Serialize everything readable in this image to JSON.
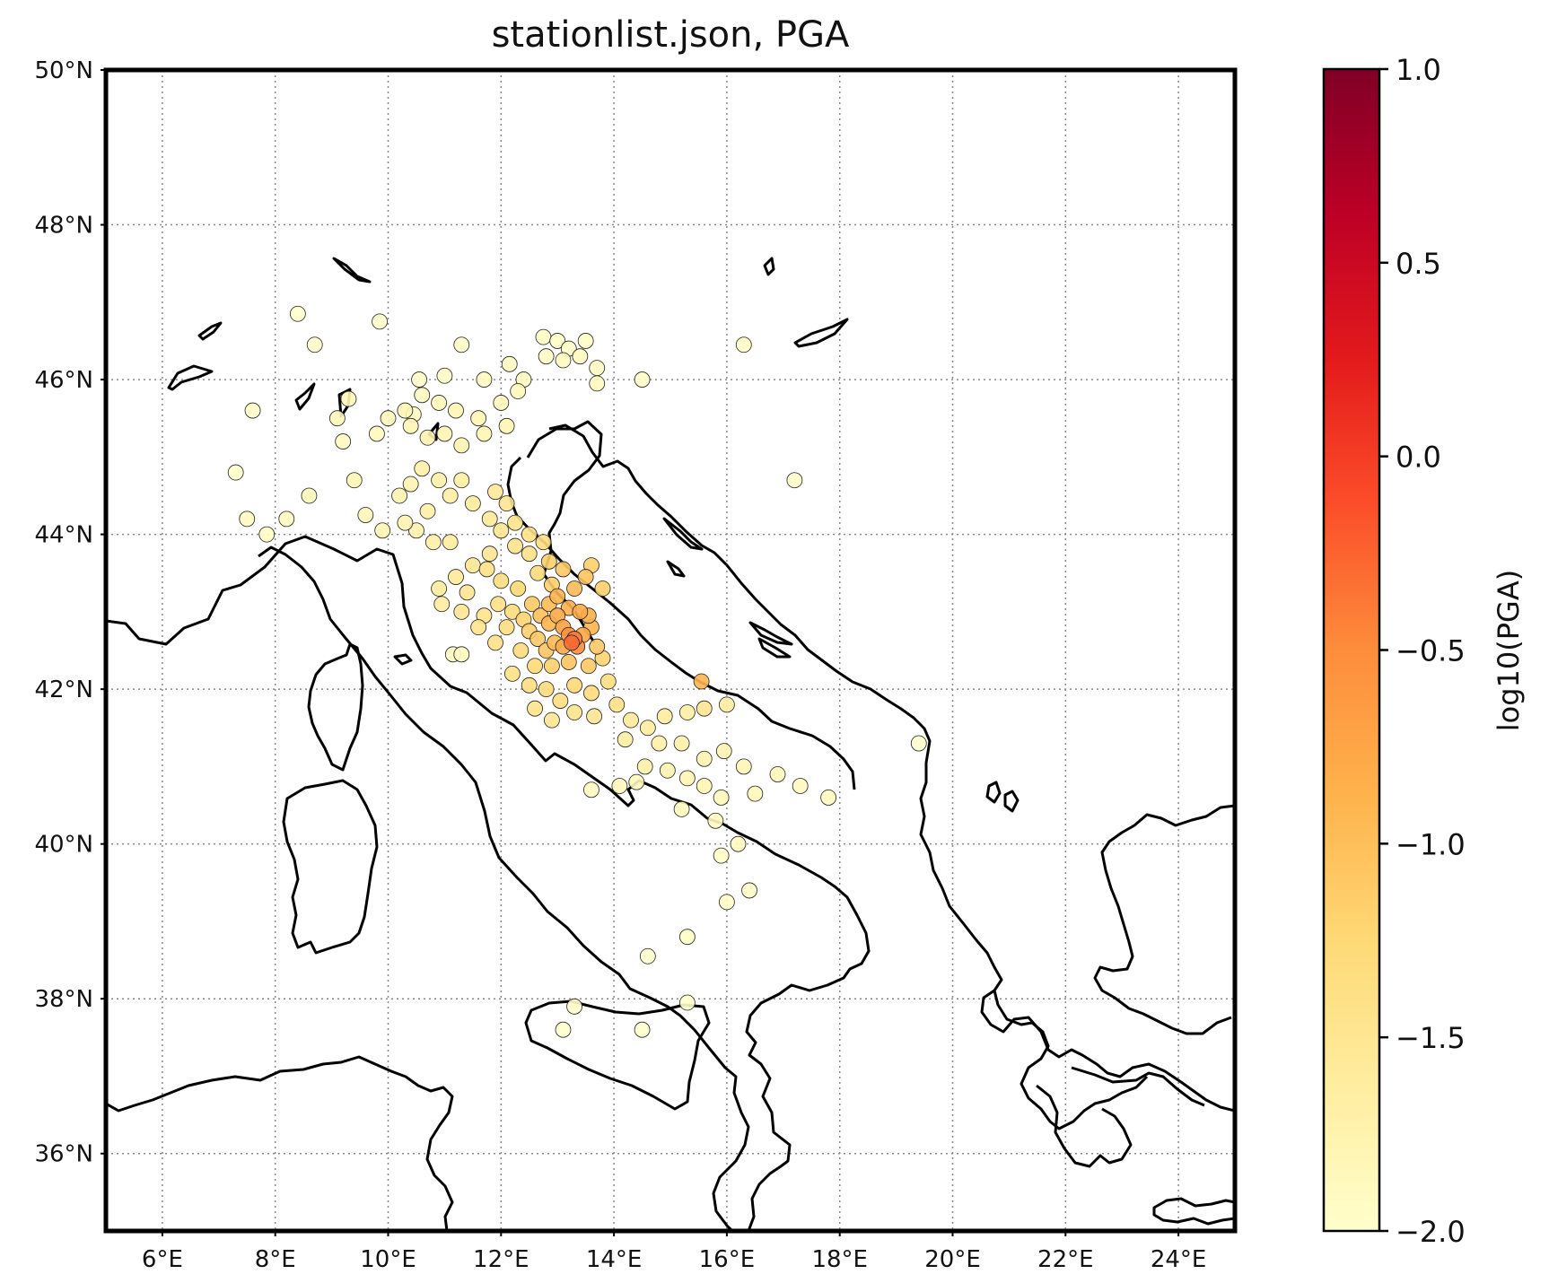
{
  "title": "stationlist.json, PGA",
  "colorbar": {
    "label": "log10(PGA)",
    "range": [
      -2.0,
      1.0
    ],
    "ticks": [
      "1.0",
      "0.5",
      "0.0",
      "−0.5",
      "−1.0",
      "−1.5",
      "−2.0"
    ],
    "tick_values": [
      1.0,
      0.5,
      0.0,
      -0.5,
      -1.0,
      -1.5,
      -2.0
    ],
    "colormap": "YlOrRd",
    "stops": [
      "#ffffcc",
      "#ffeda0",
      "#fed976",
      "#feb24c",
      "#fd8d3c",
      "#fc4e2a",
      "#e31a1c",
      "#bd0026",
      "#800026"
    ]
  },
  "map": {
    "lon_range": [
      5,
      25
    ],
    "lat_range": [
      35,
      50
    ],
    "lon_ticks": [
      "6°E",
      "8°E",
      "10°E",
      "12°E",
      "14°E",
      "16°E",
      "18°E",
      "20°E",
      "22°E",
      "24°E"
    ],
    "lon_tick_values": [
      6,
      8,
      10,
      12,
      14,
      16,
      18,
      20,
      22,
      24
    ],
    "lat_ticks": [
      "36°N",
      "38°N",
      "40°N",
      "42°N",
      "44°N",
      "46°N",
      "48°N",
      "50°N"
    ],
    "lat_tick_values": [
      36,
      38,
      40,
      42,
      44,
      46,
      48,
      50
    ],
    "grid": true,
    "coastline_color": "#000000"
  },
  "stations": [
    [
      8.4,
      46.85,
      -2.0
    ],
    [
      8.7,
      46.45,
      -2.0
    ],
    [
      9.85,
      46.75,
      -2.0
    ],
    [
      7.6,
      45.6,
      -1.95
    ],
    [
      7.3,
      44.8,
      -2.0
    ],
    [
      7.5,
      44.2,
      -1.9
    ],
    [
      7.85,
      44.0,
      -1.95
    ],
    [
      8.2,
      44.2,
      -1.9
    ],
    [
      8.6,
      44.5,
      -1.85
    ],
    [
      9.2,
      45.2,
      -1.9
    ],
    [
      9.4,
      44.7,
      -1.8
    ],
    [
      9.6,
      44.25,
      -1.85
    ],
    [
      9.8,
      45.3,
      -1.9
    ],
    [
      9.9,
      44.05,
      -1.8
    ],
    [
      10.2,
      44.5,
      -1.75
    ],
    [
      10.4,
      44.65,
      -1.75
    ],
    [
      10.7,
      44.3,
      -1.7
    ],
    [
      10.45,
      45.55,
      -1.9
    ],
    [
      10.6,
      45.8,
      -1.9
    ],
    [
      10.55,
      46.0,
      -1.95
    ],
    [
      11.0,
      46.05,
      -1.95
    ],
    [
      11.3,
      46.45,
      -1.95
    ],
    [
      11.7,
      46.0,
      -1.9
    ],
    [
      12.15,
      46.2,
      -1.9
    ],
    [
      12.4,
      46.0,
      -1.9
    ],
    [
      12.75,
      46.55,
      -1.95
    ],
    [
      13.0,
      46.5,
      -1.95
    ],
    [
      13.2,
      46.4,
      -1.95
    ],
    [
      13.5,
      46.5,
      -1.95
    ],
    [
      12.8,
      46.3,
      -1.95
    ],
    [
      13.1,
      46.25,
      -1.9
    ],
    [
      13.4,
      46.3,
      -1.9
    ],
    [
      13.7,
      46.15,
      -1.9
    ],
    [
      13.7,
      45.95,
      -1.9
    ],
    [
      14.5,
      46.0,
      -1.95
    ],
    [
      12.3,
      45.85,
      -1.85
    ],
    [
      12.0,
      45.7,
      -1.85
    ],
    [
      11.6,
      45.5,
      -1.8
    ],
    [
      11.2,
      45.6,
      -1.8
    ],
    [
      10.9,
      45.7,
      -1.85
    ],
    [
      11.0,
      45.3,
      -1.8
    ],
    [
      11.3,
      45.15,
      -1.75
    ],
    [
      11.7,
      45.3,
      -1.8
    ],
    [
      12.1,
      45.4,
      -1.8
    ],
    [
      10.6,
      44.85,
      -1.7
    ],
    [
      10.9,
      44.7,
      -1.7
    ],
    [
      11.3,
      44.7,
      -1.65
    ],
    [
      11.1,
      44.5,
      -1.65
    ],
    [
      11.5,
      44.4,
      -1.6
    ],
    [
      11.8,
      44.2,
      -1.55
    ],
    [
      12.0,
      44.05,
      -1.5
    ],
    [
      12.25,
      43.85,
      -1.45
    ],
    [
      12.5,
      43.75,
      -1.4
    ],
    [
      12.65,
      43.5,
      -1.3
    ],
    [
      12.9,
      43.35,
      -1.15
    ],
    [
      11.8,
      43.75,
      -1.5
    ],
    [
      11.5,
      43.6,
      -1.5
    ],
    [
      11.2,
      43.45,
      -1.55
    ],
    [
      10.9,
      43.3,
      -1.6
    ],
    [
      10.8,
      43.9,
      -1.7
    ],
    [
      10.5,
      44.05,
      -1.75
    ],
    [
      10.3,
      44.15,
      -1.75
    ],
    [
      11.1,
      43.9,
      -1.6
    ],
    [
      11.4,
      43.25,
      -1.5
    ],
    [
      11.7,
      42.95,
      -1.45
    ],
    [
      11.95,
      43.1,
      -1.4
    ],
    [
      12.2,
      43.0,
      -1.3
    ],
    [
      12.4,
      42.9,
      -1.2
    ],
    [
      12.55,
      43.1,
      -1.1
    ],
    [
      12.7,
      42.95,
      -1.0
    ],
    [
      12.85,
      42.85,
      -0.9
    ],
    [
      13.0,
      42.95,
      -0.8
    ],
    [
      13.1,
      42.8,
      -0.7
    ],
    [
      13.2,
      42.7,
      -0.55
    ],
    [
      13.3,
      42.65,
      -0.4
    ],
    [
      13.25,
      42.6,
      -0.3
    ],
    [
      13.35,
      42.55,
      -0.5
    ],
    [
      13.45,
      42.7,
      -0.75
    ],
    [
      13.6,
      42.8,
      -0.9
    ],
    [
      13.1,
      42.55,
      -0.8
    ],
    [
      12.95,
      42.6,
      -0.95
    ],
    [
      12.8,
      42.5,
      -1.05
    ],
    [
      12.65,
      42.65,
      -1.1
    ],
    [
      12.5,
      42.75,
      -1.15
    ],
    [
      12.85,
      43.1,
      -0.95
    ],
    [
      13.0,
      43.2,
      -0.9
    ],
    [
      13.2,
      43.05,
      -0.85
    ],
    [
      13.4,
      43.0,
      -0.8
    ],
    [
      13.55,
      42.95,
      -0.85
    ],
    [
      13.3,
      43.3,
      -0.95
    ],
    [
      13.5,
      43.45,
      -1.05
    ],
    [
      13.6,
      43.6,
      -1.15
    ],
    [
      13.1,
      43.55,
      -1.1
    ],
    [
      12.85,
      43.65,
      -1.15
    ],
    [
      13.8,
      43.3,
      -1.15
    ],
    [
      13.7,
      42.55,
      -1.1
    ],
    [
      13.8,
      42.4,
      -1.2
    ],
    [
      13.55,
      42.3,
      -1.1
    ],
    [
      13.2,
      42.35,
      -1.05
    ],
    [
      12.9,
      42.3,
      -1.15
    ],
    [
      12.6,
      42.3,
      -1.25
    ],
    [
      12.35,
      42.5,
      -1.3
    ],
    [
      12.2,
      42.2,
      -1.4
    ],
    [
      12.5,
      42.05,
      -1.35
    ],
    [
      12.8,
      42.0,
      -1.3
    ],
    [
      13.05,
      41.85,
      -1.35
    ],
    [
      13.3,
      42.05,
      -1.25
    ],
    [
      13.6,
      41.95,
      -1.3
    ],
    [
      13.9,
      42.1,
      -1.35
    ],
    [
      14.05,
      41.8,
      -1.4
    ],
    [
      12.6,
      41.75,
      -1.45
    ],
    [
      12.9,
      41.6,
      -1.5
    ],
    [
      13.3,
      41.7,
      -1.45
    ],
    [
      13.65,
      41.65,
      -1.5
    ],
    [
      14.3,
      41.6,
      -1.55
    ],
    [
      14.6,
      41.5,
      -1.6
    ],
    [
      14.9,
      41.65,
      -1.6
    ],
    [
      15.3,
      41.7,
      -1.65
    ],
    [
      14.2,
      41.35,
      -1.65
    ],
    [
      14.8,
      41.3,
      -1.7
    ],
    [
      15.2,
      41.3,
      -1.7
    ],
    [
      15.6,
      41.1,
      -1.75
    ],
    [
      15.95,
      41.2,
      -1.75
    ],
    [
      16.3,
      41.0,
      -1.8
    ],
    [
      14.55,
      41.0,
      -1.7
    ],
    [
      14.95,
      40.95,
      -1.75
    ],
    [
      15.3,
      40.85,
      -1.8
    ],
    [
      15.6,
      40.75,
      -1.8
    ],
    [
      15.9,
      40.6,
      -1.85
    ],
    [
      16.5,
      40.65,
      -1.85
    ],
    [
      16.9,
      40.9,
      -1.85
    ],
    [
      17.3,
      40.75,
      -1.9
    ],
    [
      17.8,
      40.6,
      -1.9
    ],
    [
      15.2,
      40.45,
      -1.85
    ],
    [
      15.8,
      40.3,
      -1.9
    ],
    [
      16.2,
      40.0,
      -1.9
    ],
    [
      15.9,
      39.85,
      -1.95
    ],
    [
      16.4,
      39.4,
      -1.95
    ],
    [
      16.0,
      39.25,
      -1.95
    ],
    [
      15.3,
      38.8,
      -1.95
    ],
    [
      14.6,
      38.55,
      -2.0
    ],
    [
      15.3,
      37.95,
      -2.0
    ],
    [
      14.5,
      37.6,
      -2.0
    ],
    [
      13.3,
      37.9,
      -2.0
    ],
    [
      13.1,
      37.6,
      -2.0
    ],
    [
      15.55,
      42.1,
      -0.9
    ],
    [
      15.6,
      41.75,
      -1.5
    ],
    [
      16.0,
      41.8,
      -1.6
    ],
    [
      17.2,
      44.7,
      -1.95
    ],
    [
      16.3,
      46.45,
      -1.95
    ],
    [
      19.4,
      41.3,
      -2.0
    ],
    [
      11.15,
      42.45,
      -1.9
    ],
    [
      14.4,
      40.8,
      -1.85
    ],
    [
      14.1,
      40.75,
      -1.85
    ],
    [
      13.6,
      40.7,
      -1.9
    ],
    [
      9.1,
      45.5,
      -1.85
    ],
    [
      9.3,
      45.75,
      -1.85
    ],
    [
      10.0,
      45.5,
      -1.85
    ],
    [
      10.3,
      45.6,
      -1.8
    ],
    [
      10.4,
      45.4,
      -1.8
    ],
    [
      10.7,
      45.25,
      -1.75
    ],
    [
      11.9,
      44.55,
      -1.55
    ],
    [
      12.1,
      44.4,
      -1.5
    ],
    [
      12.25,
      44.15,
      -1.45
    ],
    [
      12.5,
      44.0,
      -1.4
    ],
    [
      12.75,
      43.9,
      -1.35
    ],
    [
      11.3,
      43.0,
      -1.5
    ],
    [
      11.6,
      42.8,
      -1.45
    ],
    [
      11.9,
      42.6,
      -1.4
    ],
    [
      12.1,
      42.8,
      -1.35
    ],
    [
      12.3,
      43.3,
      -1.25
    ],
    [
      12.0,
      43.4,
      -1.35
    ],
    [
      11.75,
      43.55,
      -1.4
    ],
    [
      10.95,
      43.1,
      -1.6
    ],
    [
      11.3,
      42.45,
      -1.9
    ]
  ]
}
